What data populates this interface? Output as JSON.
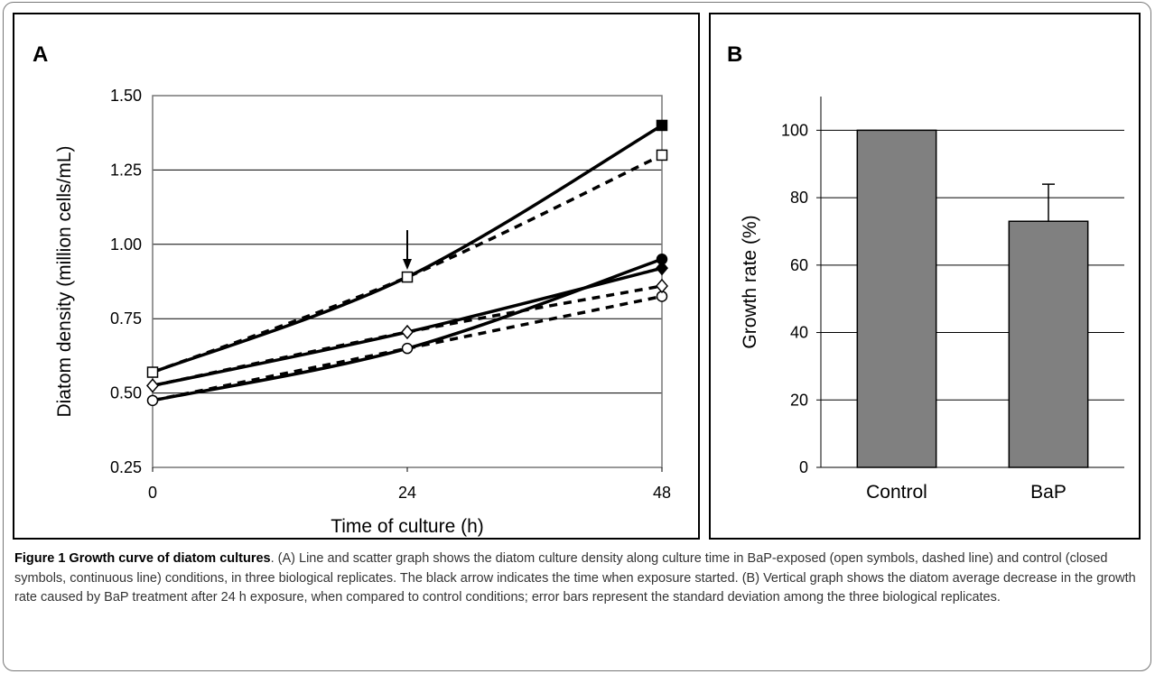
{
  "caption": {
    "title": "Figure 1 Growth curve of diatom cultures",
    "text": ". (A) Line and scatter graph shows the diatom culture density along culture time in BaP-exposed (open symbols, dashed line) and control (closed symbols, continuous line) conditions, in three biological replicates. The black arrow indicates the time when exposure started. (B) Vertical graph shows the diatom average decrease in the growth rate caused by BaP treatment after 24 h exposure, when compared to control conditions; error bars represent the standard deviation among the three biological replicates."
  },
  "chart_data": [
    {
      "panel_label": "A",
      "type": "line",
      "xlabel": "Time of culture (h)",
      "ylabel": "Diatom density (million cells/mL)",
      "xlim": [
        0,
        48
      ],
      "ylim": [
        0.25,
        1.5
      ],
      "x_ticks": [
        "0",
        "24",
        "48"
      ],
      "y_ticks": [
        "0.25",
        "0.50",
        "0.75",
        "1.00",
        "1.25",
        "1.50"
      ],
      "x": [
        0,
        24,
        48
      ],
      "grid": true,
      "series": [
        {
          "marker": "filled-square",
          "line": "solid",
          "values": [
            0.57,
            0.89,
            1.4
          ]
        },
        {
          "marker": "open-square",
          "line": "dashed",
          "values": [
            0.57,
            0.89,
            1.3
          ]
        },
        {
          "marker": "filled-circle",
          "line": "solid",
          "values": [
            0.475,
            0.65,
            0.95
          ]
        },
        {
          "marker": "open-circle",
          "line": "dashed",
          "values": [
            0.475,
            0.65,
            0.825
          ]
        },
        {
          "marker": "filled-diamond",
          "line": "solid",
          "values": [
            0.525,
            0.705,
            0.92
          ]
        },
        {
          "marker": "open-diamond",
          "line": "dashed",
          "values": [
            0.525,
            0.705,
            0.86
          ]
        }
      ],
      "annotations": [
        {
          "type": "arrow",
          "x": 24,
          "points_to_y": 0.89
        }
      ]
    },
    {
      "panel_label": "B",
      "type": "bar",
      "categories": [
        "Control",
        "BaP"
      ],
      "values": [
        100,
        73
      ],
      "error": [
        0,
        11
      ],
      "ylabel": "Growth rate (%)",
      "ylim": [
        0,
        110
      ],
      "y_ticks": [
        "0",
        "20",
        "40",
        "60",
        "80",
        "100"
      ],
      "grid": true,
      "bar_color": "#808080"
    }
  ]
}
